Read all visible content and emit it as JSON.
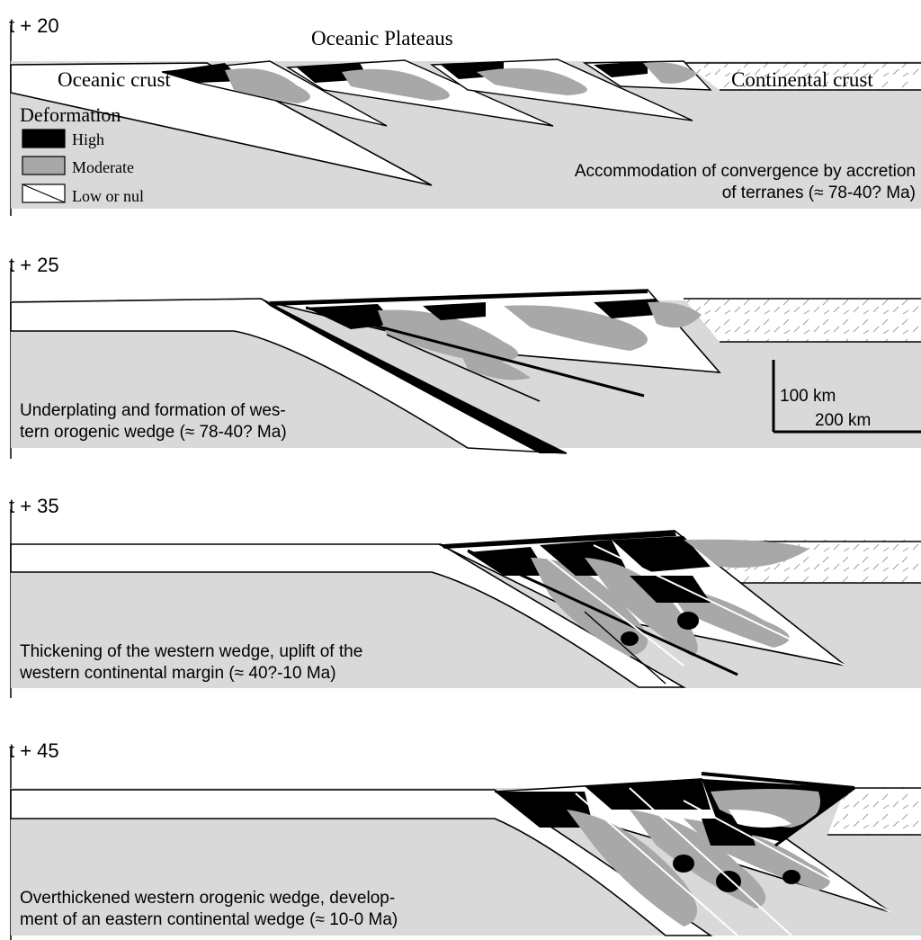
{
  "figure": {
    "panels": [
      {
        "time_label": "t + 20",
        "caption_lines": [
          "Accommodation of convergence by accretion",
          "of terranes (≈ 78-40? Ma)"
        ],
        "labels": {
          "oceanic_plateaus": "Oceanic Plateaus",
          "oceanic_crust": "Oceanic crust",
          "continental_crust": "Continental crust"
        }
      },
      {
        "time_label": "t + 25",
        "caption_lines": [
          "Underplating and formation of wes-",
          "tern orogenic wedge (≈ 78-40? Ma)"
        ]
      },
      {
        "time_label": "t + 35",
        "caption_lines": [
          "Thickening of the western wedge, uplift of the",
          "western continental margin (≈ 40?-10 Ma)"
        ]
      },
      {
        "time_label": "t + 45",
        "caption_lines": [
          "Overthickened western orogenic wedge, develop-",
          "ment of an eastern continental wedge (≈ 10-0 Ma)"
        ]
      }
    ],
    "legend": {
      "title": "Deformation",
      "items": [
        {
          "label": "High",
          "color": "#000000"
        },
        {
          "label": "Moderate",
          "color": "#a8a8a8"
        },
        {
          "label": "Low or nul",
          "color": "#ffffff"
        }
      ]
    },
    "scale_bar": {
      "vertical_label": "100 km",
      "horizontal_label": "200 km"
    },
    "colors": {
      "mantle": "#d9d9d9",
      "high": "#000000",
      "moderate": "#a8a8a8",
      "low": "#ffffff"
    }
  }
}
